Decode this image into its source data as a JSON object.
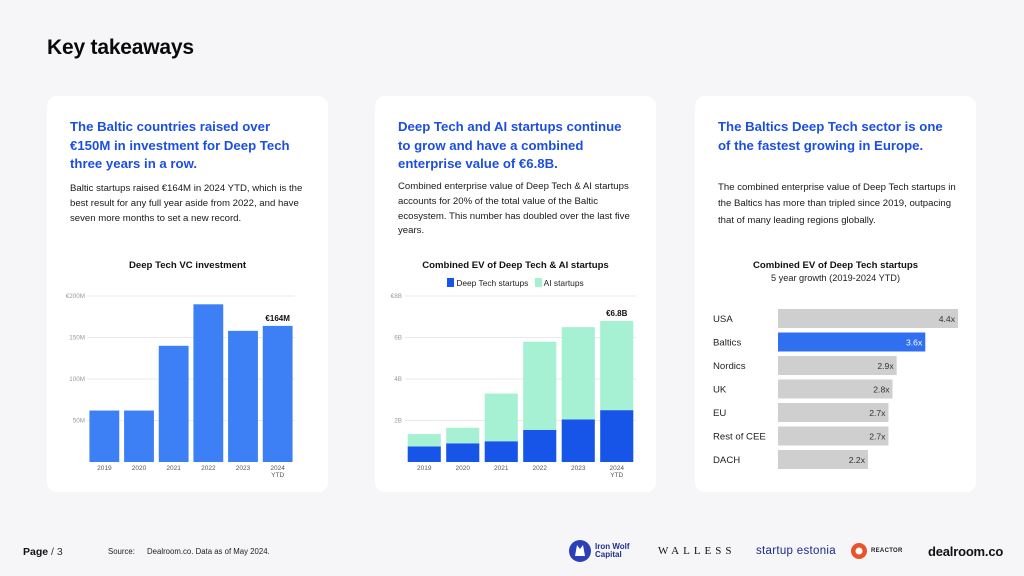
{
  "page": {
    "title": "Key takeaways",
    "page_label": "Page",
    "page_number": "/ 3",
    "source_label": "Source:",
    "source_text": "Dealroom.co. Data as of May 2024."
  },
  "cards": [
    {
      "heading": "The Baltic countries raised over €150M in investment for Deep Tech three years in a row.",
      "body": "Baltic startups raised €164M in 2024 YTD, which is the best result for any full year aside from 2022, and have seven more months to set a new record."
    },
    {
      "heading": "Deep Tech and AI startups continue to grow and have a combined enterprise value of €6.8B.",
      "body": "Combined enterprise value of Deep Tech & AI startups accounts for 20% of the total value of the Baltic ecosystem. This number has doubled over the last five years."
    },
    {
      "heading": "The Baltics Deep Tech sector is one of the fastest growing in Europe.",
      "body": "The combined enterprise value of Deep Tech startups in the Baltics has more than tripled since 2019, outpacing that of many leading regions globally."
    }
  ],
  "logos": {
    "ironwolf_line1": "Iron Wolf",
    "ironwolf_line2": "Capital",
    "walless": "WALLESS",
    "estonia": "startup estonia",
    "reactor": "REACTOR",
    "dealroom": "dealroom.co"
  },
  "colors": {
    "blue": "#3d7ff5",
    "deep_blue": "#1655e8",
    "mint": "#a6f0d3",
    "grey_bar": "#cfcfcf",
    "baltics_bar": "#2f6ff0",
    "heading_blue": "#1c4fe0"
  },
  "chart_data": [
    {
      "type": "bar",
      "title": "Deep Tech VC investment",
      "categories": [
        "2019",
        "2020",
        "2021",
        "2022",
        "2023",
        "2024 YTD"
      ],
      "values": [
        62,
        62,
        140,
        190,
        158,
        164
      ],
      "y_ticks": [
        "€200M",
        "150M",
        "100M",
        "50M"
      ],
      "ylim": [
        0,
        200
      ],
      "annotation": "€164M",
      "xlabel": "",
      "ylabel": ""
    },
    {
      "type": "bar",
      "stacked": true,
      "title": "Combined EV of Deep Tech & AI startups",
      "legend": [
        "Deep Tech startups",
        "AI startups"
      ],
      "categories": [
        "2019",
        "2020",
        "2021",
        "2022",
        "2023",
        "2024 YTD"
      ],
      "series": [
        {
          "name": "Deep Tech startups",
          "values": [
            0.75,
            0.9,
            1.0,
            1.55,
            2.05,
            2.5
          ]
        },
        {
          "name": "AI startups",
          "values": [
            0.6,
            0.75,
            2.3,
            4.25,
            4.45,
            4.3
          ]
        }
      ],
      "y_ticks": [
        "€8B",
        "6B",
        "4B",
        "2B"
      ],
      "ylim": [
        0,
        8
      ],
      "annotation": "€6.8B"
    },
    {
      "type": "bar",
      "orientation": "horizontal",
      "title": "Combined EV of Deep Tech startups",
      "subtitle": "5 year growth (2019-2024 YTD)",
      "categories": [
        "USA",
        "Baltics",
        "Nordics",
        "UK",
        "EU",
        "Rest of CEE",
        "DACH"
      ],
      "values": [
        4.4,
        3.6,
        2.9,
        2.8,
        2.7,
        2.7,
        2.2
      ],
      "value_labels": [
        "4.4x",
        "3.6x",
        "2.9x",
        "2.8x",
        "2.7x",
        "2.7x",
        "2.2x"
      ],
      "highlight": "Baltics",
      "xlim": [
        0,
        4.4
      ]
    }
  ]
}
